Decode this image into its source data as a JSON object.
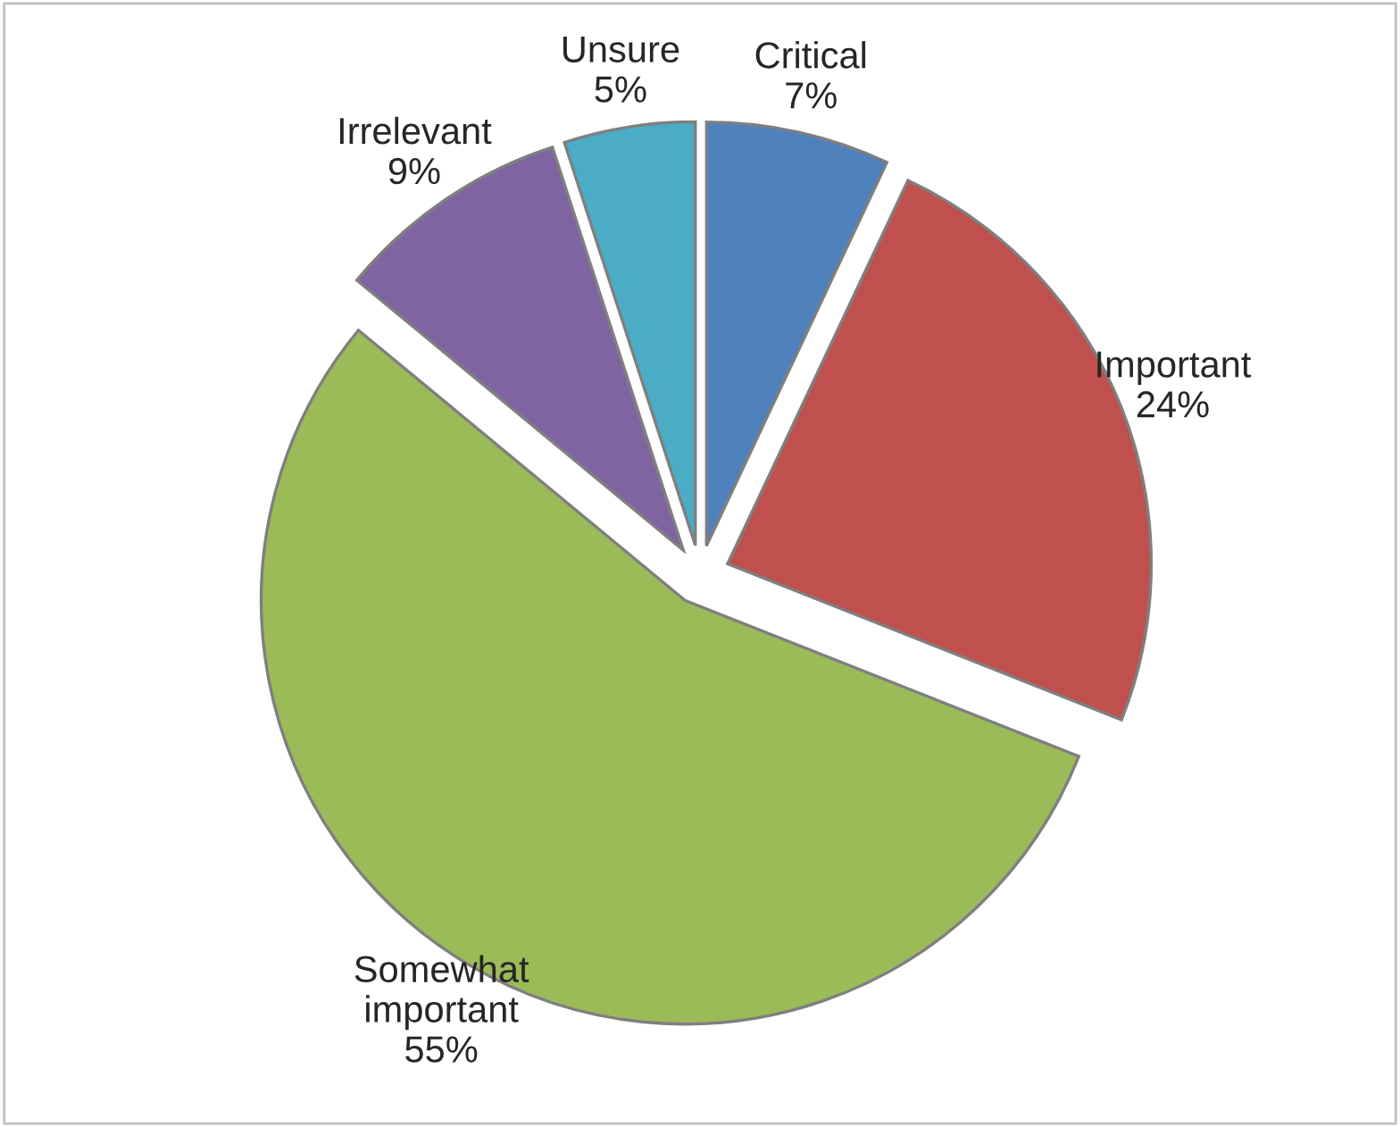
{
  "chart_data": {
    "type": "pie",
    "categories": [
      "Critical",
      "Important",
      "Somewhat important",
      "Irrelevant",
      "Unsure"
    ],
    "values": [
      7,
      24,
      55,
      9,
      5
    ],
    "value_labels": [
      "7%",
      "24%",
      "55%",
      "9%",
      "5%"
    ],
    "colors": [
      "#4f81bd",
      "#c0504d",
      "#9bbb59",
      "#8064a2",
      "#4bacc6"
    ],
    "legend": false
  }
}
